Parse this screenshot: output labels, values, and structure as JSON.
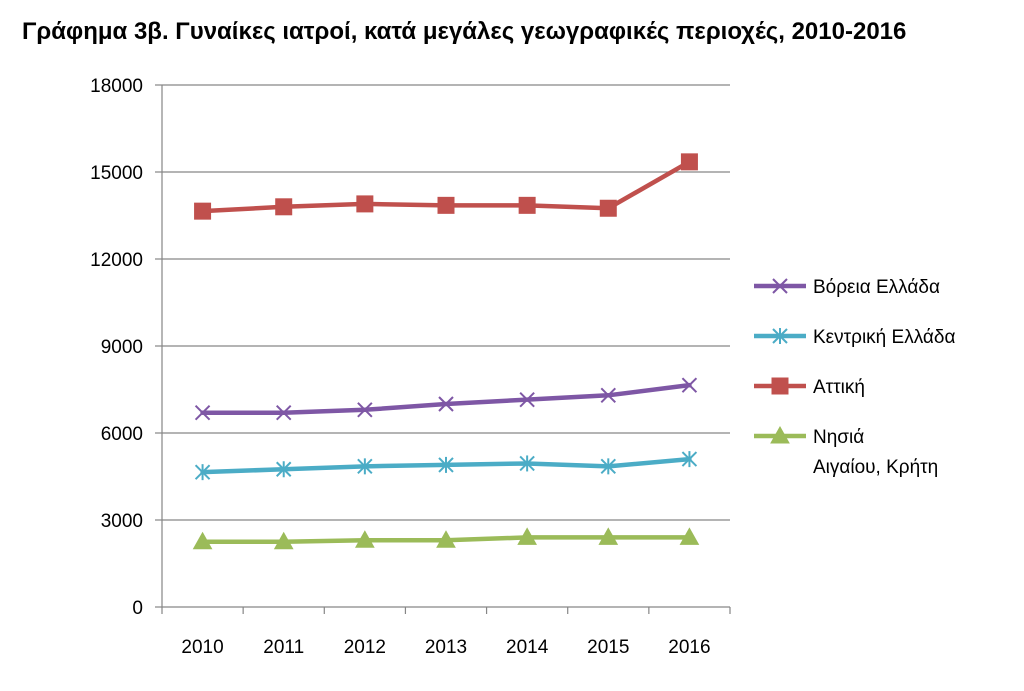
{
  "chart_data": {
    "type": "line",
    "title": "Γράφημα 3β. Γυναίκες ιατροί, κατά μεγάλες γεωγραφικές περιοχές, 2010-2016",
    "xlabel": "",
    "ylabel": "",
    "categories": [
      "2010",
      "2011",
      "2012",
      "2013",
      "2014",
      "2015",
      "2016"
    ],
    "ylim": [
      0,
      18000
    ],
    "yticks": [
      0,
      3000,
      6000,
      9000,
      12000,
      15000,
      18000
    ],
    "grid": true,
    "legend_position": "right",
    "series": [
      {
        "name": "Βόρεια Ελλάδα",
        "label_lines": [
          "Βόρεια Ελλάδα"
        ],
        "color": "#7E57A5",
        "marker": "x",
        "values": [
          6700,
          6700,
          6800,
          7000,
          7150,
          7300,
          7650
        ]
      },
      {
        "name": "Κεντρική Ελλάδα",
        "label_lines": [
          "Κεντρική Ελλάδα"
        ],
        "color": "#4BACC6",
        "marker": "asterisk",
        "values": [
          4650,
          4750,
          4850,
          4900,
          4950,
          4850,
          5100
        ]
      },
      {
        "name": "Αττική",
        "label_lines": [
          "Αττική"
        ],
        "color": "#C0504D",
        "marker": "square",
        "values": [
          13650,
          13800,
          13900,
          13850,
          13850,
          13750,
          15350
        ]
      },
      {
        "name": "Νησιά Αιγαίου, Κρήτη",
        "label_lines": [
          "Νησιά",
          "Αιγαίου, Κρήτη"
        ],
        "color": "#9BBB59",
        "marker": "triangle",
        "values": [
          2250,
          2250,
          2300,
          2300,
          2400,
          2400,
          2400
        ]
      }
    ]
  }
}
